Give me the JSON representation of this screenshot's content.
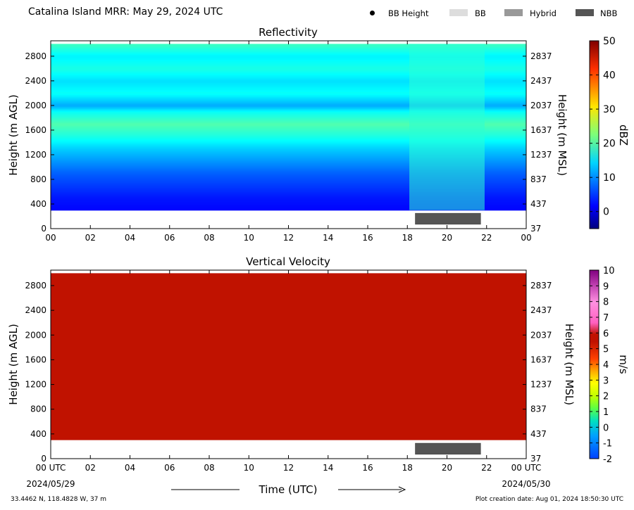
{
  "header": {
    "title": "Catalina Island MRR:  May 29, 2024 UTC",
    "legend": [
      {
        "label": "BB Height",
        "color": "#000000",
        "marker": "dot"
      },
      {
        "label": "BB",
        "color": "#dddddd",
        "marker": "bar"
      },
      {
        "label": "Hybrid",
        "color": "#999999",
        "marker": "bar"
      },
      {
        "label": "NBB",
        "color": "#555555",
        "marker": "bar"
      }
    ]
  },
  "footer": {
    "location": "33.4462 N, 118.4828 W, 37 m",
    "created": "Plot creation date: Aug 01, 2024 18:50:30 UTC"
  },
  "chart_data": [
    {
      "type": "heatmap",
      "title": "Reflectivity",
      "ylabel": "Height (m AGL)",
      "ylabel_right": "Height (m MSL)",
      "xlabel": "",
      "x_ticks": [
        "00",
        "02",
        "04",
        "06",
        "08",
        "10",
        "12",
        "14",
        "16",
        "18",
        "20",
        "22",
        "00"
      ],
      "x_range_hours": [
        0,
        24
      ],
      "y_range": [
        0,
        3050
      ],
      "y_ticks": [
        0,
        400,
        800,
        1200,
        1600,
        2000,
        2400,
        2800
      ],
      "y_ticks_right": [
        "37",
        "437",
        "837",
        "1237",
        "1637",
        "2037",
        "2437",
        "2837"
      ],
      "colorbar": {
        "label": "dBZ",
        "range": [
          -5,
          50
        ],
        "ticks": [
          0,
          10,
          20,
          30,
          40,
          50
        ]
      },
      "data_bottom_m": 300,
      "profile_by_height": [
        {
          "height": 300,
          "dbz": 2
        },
        {
          "height": 500,
          "dbz": 3
        },
        {
          "height": 700,
          "dbz": 5
        },
        {
          "height": 900,
          "dbz": 7
        },
        {
          "height": 1100,
          "dbz": 10
        },
        {
          "height": 1300,
          "dbz": 13
        },
        {
          "height": 1500,
          "dbz": 17
        },
        {
          "height": 1700,
          "dbz": 20
        },
        {
          "height": 1900,
          "dbz": 16
        },
        {
          "height": 2000,
          "dbz": 11
        },
        {
          "height": 2200,
          "dbz": 16
        },
        {
          "height": 2400,
          "dbz": 14
        },
        {
          "height": 2600,
          "dbz": 17
        },
        {
          "height": 2800,
          "dbz": 15
        },
        {
          "height": 3000,
          "dbz": 19
        }
      ],
      "rain_period": {
        "start_hour": 18.1,
        "end_hour": 21.9,
        "dbz": 18
      },
      "bright_band": {
        "type": "NBB",
        "start_hour": 18.4,
        "end_hour": 21.7
      }
    },
    {
      "type": "heatmap",
      "title": "Vertical Velocity",
      "ylabel": "Height (m AGL)",
      "ylabel_right": "Height (m MSL)",
      "xlabel": "Time (UTC)",
      "x_ticks": [
        "00 UTC",
        "02",
        "04",
        "06",
        "08",
        "10",
        "12",
        "14",
        "16",
        "18",
        "20",
        "22",
        "00 UTC"
      ],
      "x_date_start": "2024/05/29",
      "x_date_end": "2024/05/30",
      "x_range_hours": [
        0,
        24
      ],
      "y_range": [
        0,
        3050
      ],
      "y_ticks": [
        0,
        400,
        800,
        1200,
        1600,
        2000,
        2400,
        2800
      ],
      "y_ticks_right": [
        "37",
        "437",
        "837",
        "1237",
        "1637",
        "2037",
        "2437",
        "2837"
      ],
      "colorbar": {
        "label": "m/s",
        "range": [
          -2,
          10
        ],
        "ticks": [
          -2,
          -1,
          0,
          1,
          2,
          3,
          4,
          5,
          6,
          7,
          8,
          9,
          10
        ]
      },
      "data_bottom_m": 300,
      "uniform_value": 6.2,
      "fill_color": "#c01200",
      "bright_band": {
        "type": "NBB",
        "start_hour": 18.4,
        "end_hour": 21.7
      }
    }
  ]
}
